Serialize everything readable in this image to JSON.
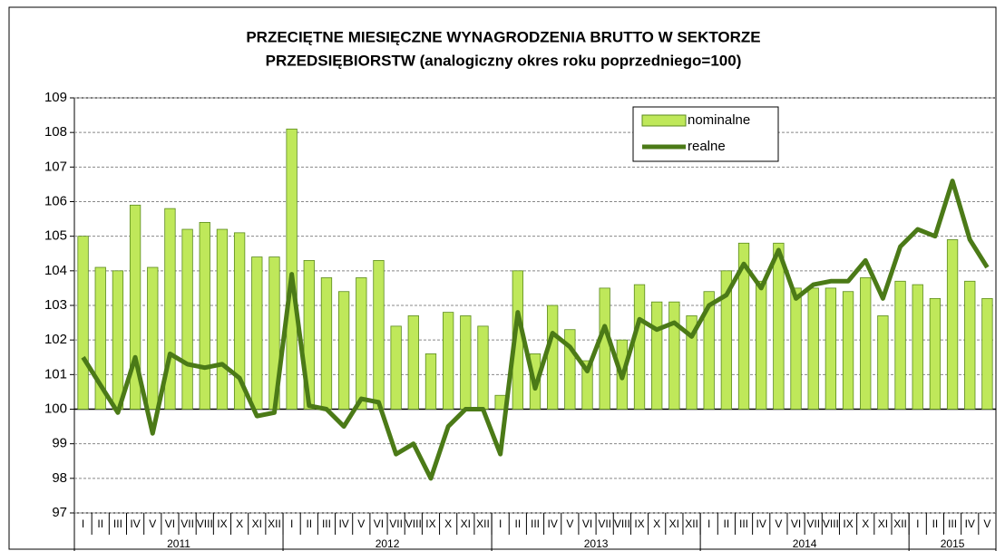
{
  "chart_data": {
    "type": "bar+line",
    "title": [
      "PRZECIĘTNE MIESIĘCZNE WYNAGRODZENIA BRUTTO W SEKTORZE",
      "PRZEDSIĘBIORSTW (analogiczny okres roku poprzedniego=100)"
    ],
    "categories": [
      "I",
      "II",
      "III",
      "IV",
      "V",
      "VI",
      "VII",
      "VIII",
      "IX",
      "X",
      "XI",
      "XII",
      "I",
      "II",
      "III",
      "IV",
      "V",
      "VI",
      "VII",
      "VIII",
      "IX",
      "X",
      "XI",
      "XII",
      "I",
      "II",
      "III",
      "IV",
      "V",
      "VI",
      "VII",
      "VIII",
      "IX",
      "X",
      "XI",
      "XII",
      "I",
      "II",
      "III",
      "IV",
      "V",
      "VI",
      "VII",
      "VIII",
      "IX",
      "X",
      "XI",
      "XII",
      "I",
      "II",
      "III",
      "IV",
      "V"
    ],
    "years": [
      "2011",
      "2012",
      "2013",
      "2014",
      "2015"
    ],
    "series": [
      {
        "name": "nominalne",
        "type": "bar",
        "color": "#bfe85a",
        "values": [
          105.0,
          104.1,
          104.0,
          105.9,
          104.1,
          105.8,
          105.2,
          105.4,
          105.2,
          105.1,
          104.4,
          104.4,
          108.1,
          104.3,
          103.8,
          103.4,
          103.8,
          104.3,
          102.4,
          102.7,
          101.6,
          102.8,
          102.7,
          102.4,
          100.4,
          104.0,
          101.6,
          103.0,
          102.3,
          101.4,
          103.5,
          102.0,
          103.6,
          103.1,
          103.1,
          102.7,
          103.4,
          104.0,
          104.8,
          103.7,
          104.8,
          103.5,
          103.5,
          103.5,
          103.4,
          103.8,
          102.7,
          103.7,
          103.6,
          103.2,
          104.9,
          103.7,
          103.2
        ]
      },
      {
        "name": "realne",
        "type": "line",
        "color": "#4b7a17",
        "values": [
          101.5,
          100.7,
          99.9,
          101.5,
          99.3,
          101.6,
          101.3,
          101.2,
          101.3,
          100.9,
          99.8,
          99.9,
          103.9,
          100.1,
          100.0,
          99.5,
          100.3,
          100.2,
          98.7,
          99.0,
          98.0,
          99.5,
          100.0,
          100.0,
          98.7,
          102.8,
          100.6,
          102.2,
          101.8,
          101.1,
          102.4,
          100.9,
          102.6,
          102.3,
          102.5,
          102.1,
          103.0,
          103.3,
          104.2,
          103.5,
          104.6,
          103.2,
          103.6,
          103.7,
          103.7,
          104.3,
          103.2,
          104.7,
          105.2,
          105.0,
          106.6,
          104.9,
          104.1
        ]
      }
    ],
    "baseline": 100,
    "ylim": [
      97,
      109
    ],
    "yticks": [
      97,
      98,
      99,
      100,
      101,
      102,
      103,
      104,
      105,
      106,
      107,
      108,
      109
    ],
    "grid": true,
    "legend": "upper right"
  }
}
